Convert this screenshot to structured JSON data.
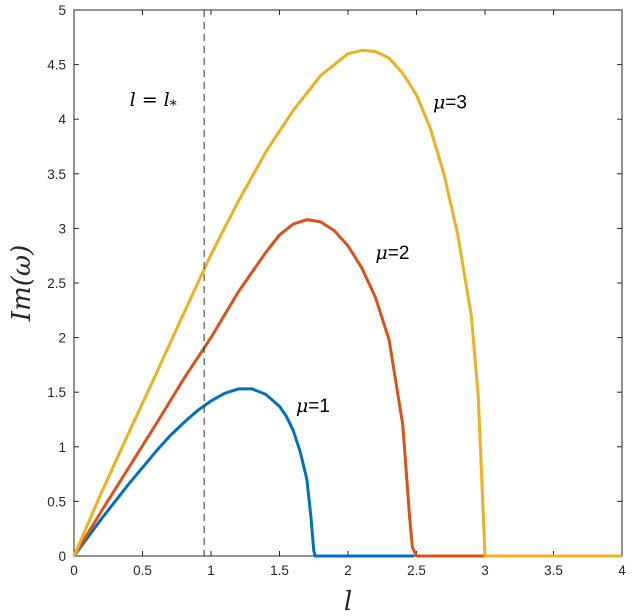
{
  "chart_data": {
    "type": "line",
    "title": "",
    "xlabel": "l",
    "ylabel": "Im(ω)",
    "xlim": [
      0,
      4
    ],
    "ylim": [
      0,
      5
    ],
    "x_ticks": [
      "0",
      "0.5",
      "1",
      "1.5",
      "2",
      "2.5",
      "3",
      "3.5",
      "4"
    ],
    "y_ticks": [
      "0",
      "0.5",
      "1",
      "1.5",
      "2",
      "2.5",
      "3",
      "3.5",
      "4",
      "4.5",
      "5"
    ],
    "grid": false,
    "colors": {
      "mu1": "#0072BD",
      "mu2": "#D95319",
      "mu3": "#EDB120",
      "marker": "#333333"
    },
    "series": [
      {
        "name": "μ=1",
        "label_mu": "μ",
        "label_value": "=1",
        "label_at": [
          1.62,
          1.32
        ],
        "x": [
          0,
          0.1,
          0.2,
          0.3,
          0.4,
          0.5,
          0.6,
          0.7,
          0.8,
          0.9,
          1.0,
          1.1,
          1.2,
          1.3,
          1.4,
          1.5,
          1.55,
          1.6,
          1.65,
          1.7,
          1.73,
          1.75,
          1.76,
          1.8,
          2.0,
          2.4,
          2.48
        ],
        "y": [
          0,
          0.17,
          0.34,
          0.5,
          0.66,
          0.81,
          0.96,
          1.1,
          1.22,
          1.33,
          1.42,
          1.49,
          1.53,
          1.53,
          1.48,
          1.37,
          1.28,
          1.15,
          0.96,
          0.7,
          0.35,
          0.05,
          0,
          0,
          0,
          0,
          0
        ]
      },
      {
        "name": "μ=2",
        "label_mu": "μ",
        "label_value": "=2",
        "label_at": [
          2.2,
          2.72
        ],
        "x": [
          0,
          0.2,
          0.4,
          0.6,
          0.8,
          1.0,
          1.2,
          1.4,
          1.5,
          1.6,
          1.7,
          1.8,
          1.9,
          2.0,
          2.1,
          2.2,
          2.3,
          2.4,
          2.45,
          2.47,
          2.5,
          3.0
        ],
        "y": [
          0,
          0.41,
          0.81,
          1.21,
          1.62,
          2.0,
          2.42,
          2.78,
          2.94,
          3.04,
          3.08,
          3.06,
          2.98,
          2.84,
          2.64,
          2.37,
          1.98,
          1.2,
          0.35,
          0.08,
          0,
          0
        ]
      },
      {
        "name": "μ=3",
        "label_mu": "μ",
        "label_value": "=3",
        "label_at": [
          2.62,
          4.1
        ],
        "x": [
          0,
          0.2,
          0.4,
          0.6,
          0.8,
          1.0,
          1.2,
          1.4,
          1.6,
          1.8,
          2.0,
          2.1,
          2.2,
          2.3,
          2.4,
          2.5,
          2.6,
          2.7,
          2.8,
          2.9,
          2.95,
          2.98,
          3.0,
          4.0
        ],
        "y": [
          0,
          0.58,
          1.13,
          1.67,
          2.22,
          2.76,
          3.25,
          3.7,
          4.08,
          4.4,
          4.6,
          4.63,
          4.62,
          4.56,
          4.42,
          4.22,
          3.92,
          3.5,
          2.95,
          2.2,
          1.48,
          0.6,
          0,
          0
        ]
      }
    ],
    "vline": {
      "x": 0.95,
      "style": "dashed",
      "label": "l = l*",
      "label_lhs": "l",
      "label_eq": "=",
      "label_rhs": "l",
      "label_sub": "*",
      "label_at": [
        0.45,
        4.12
      ]
    }
  }
}
